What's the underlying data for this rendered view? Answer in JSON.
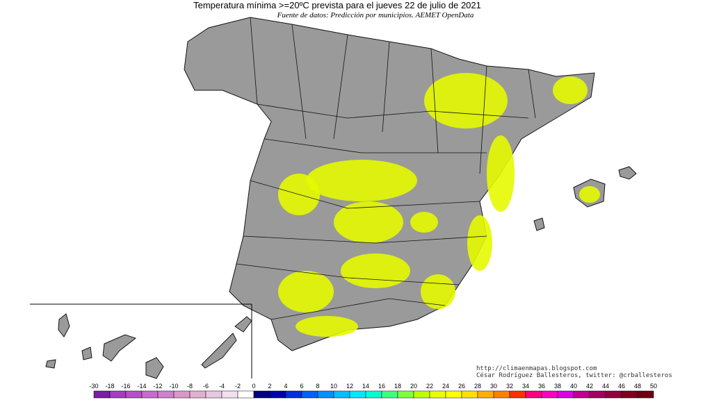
{
  "header": {
    "title": "Temperatura mínima >=20ºC prevista para el jueves 22 de julio de 2021",
    "subtitle": "Fuente de datos: Predicción por municipios. AEMET OpenData"
  },
  "credits": [
    "http://climaenmapas.blogspot.com",
    "César Rodríguez Ballesteros, twitter: @crballesteros"
  ],
  "legend": {
    "ticks": [
      -30,
      -18,
      -16,
      -14,
      -12,
      -10,
      -8,
      -6,
      -4,
      -2,
      0,
      2,
      4,
      6,
      8,
      10,
      12,
      14,
      16,
      18,
      20,
      22,
      24,
      26,
      28,
      30,
      32,
      34,
      36,
      38,
      40,
      42,
      44,
      46,
      48,
      50
    ],
    "colors": [
      "#7b1fa2",
      "#a63cc0",
      "#b84fc8",
      "#c86ad0",
      "#d080cc",
      "#d898c8",
      "#e0b0d0",
      "#e8c8e0",
      "#f0e0f0",
      "#ffffff",
      "#000080",
      "#0000b0",
      "#0030e0",
      "#0060ff",
      "#0090ff",
      "#00c0ff",
      "#00e8ff",
      "#00ffd0",
      "#40ff80",
      "#80ff40",
      "#c0ff00",
      "#e8ff00",
      "#ffff00",
      "#ffe000",
      "#ffb000",
      "#ff8000",
      "#ff3000",
      "#ff0080",
      "#ff00c0",
      "#e000e0",
      "#c00090",
      "#a00060",
      "#900040",
      "#800020",
      "#700010"
    ]
  }
}
